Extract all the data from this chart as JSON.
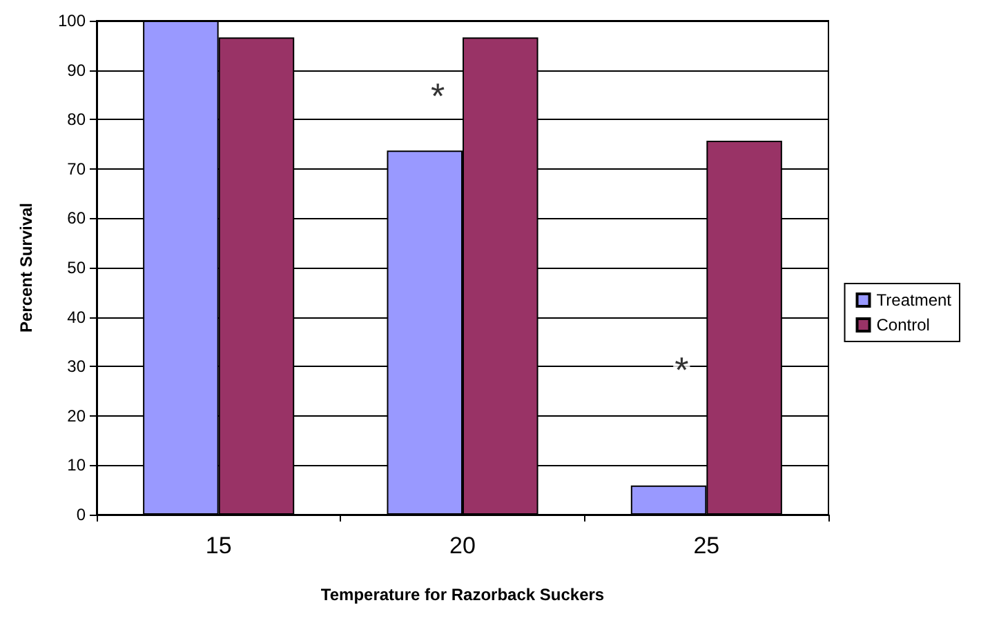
{
  "chart_data": {
    "type": "bar",
    "xlabel": "Temperature for Razorback Suckers",
    "ylabel": "Percent Survival",
    "categories": [
      "15",
      "20",
      "25"
    ],
    "series": [
      {
        "name": "Treatment",
        "color": "#9999ff",
        "values": [
          100,
          73.7,
          5.9
        ]
      },
      {
        "name": "Control",
        "color": "#993366",
        "values": [
          96.6,
          96.6,
          75.7
        ]
      }
    ],
    "ylim": [
      0,
      100
    ],
    "yticks": [
      0,
      10,
      20,
      30,
      40,
      50,
      60,
      70,
      80,
      90,
      100
    ],
    "grid": "y",
    "legend": "right",
    "annotations": [
      {
        "text": "*",
        "x": "20",
        "y": 86.5
      },
      {
        "text": "*",
        "x": "25",
        "y": 31
      }
    ]
  }
}
